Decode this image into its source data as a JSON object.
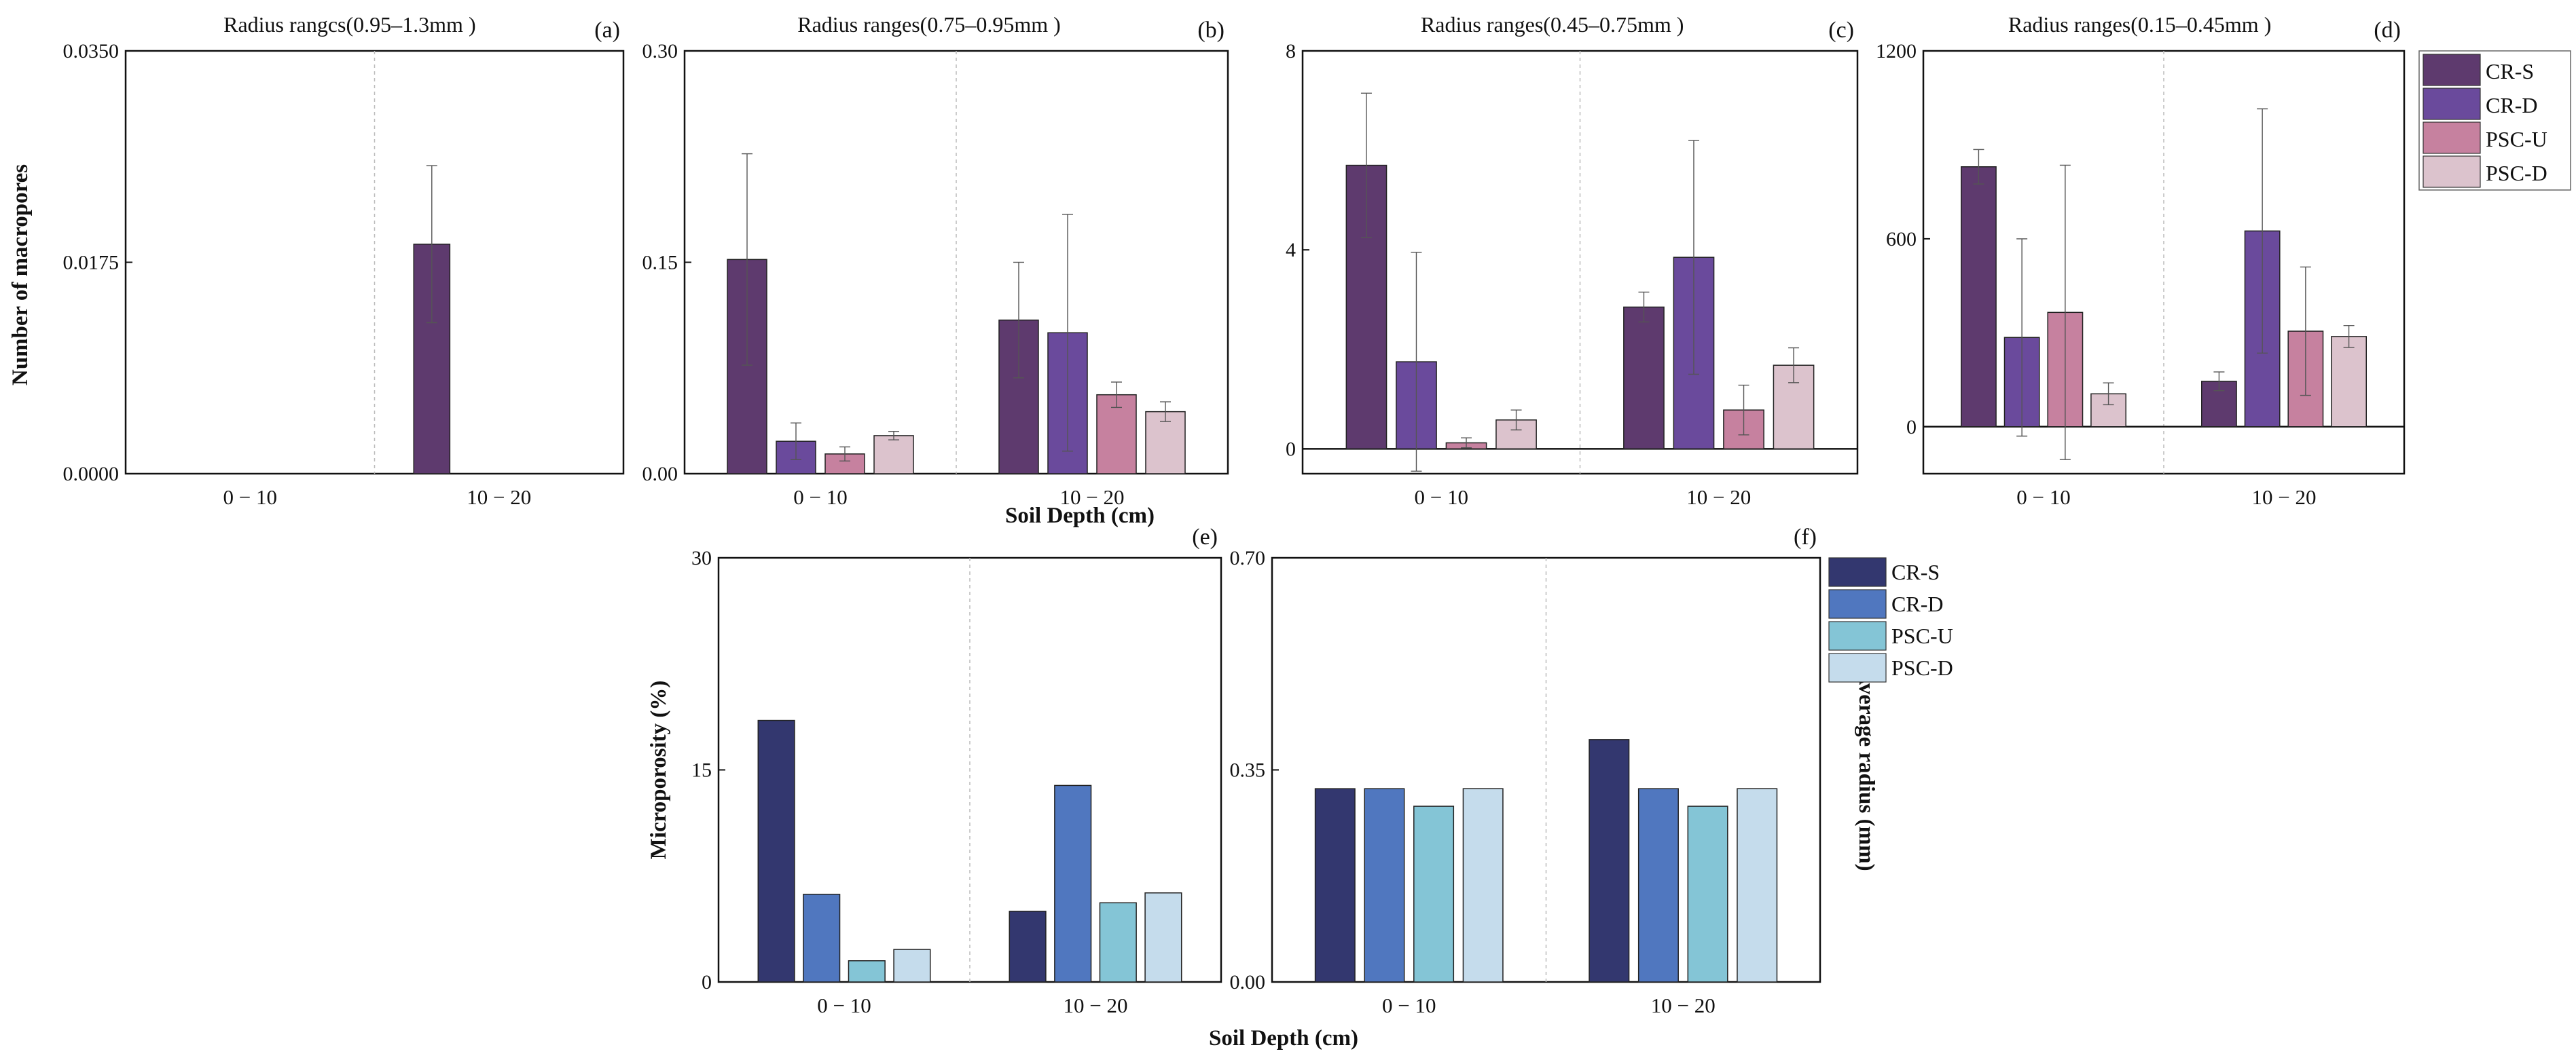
{
  "figure": {
    "top_xlabel": "Soil Depth (cm)",
    "bottom_xlabel": "Soil Depth (cm)",
    "top_ylabel": "Number of macropores",
    "legend_top": {
      "entries": [
        "CR-S",
        "CR-D",
        "PSC-U",
        "PSC-D"
      ],
      "colors": [
        "#5e3a6e",
        "#6a4a9c",
        "#c6819f",
        "#dcc3cd"
      ]
    },
    "legend_bottom": {
      "entries": [
        "CR-S",
        "CR-D",
        "PSC-U",
        "PSC-D"
      ],
      "colors": [
        "#33376f",
        "#5077bf",
        "#84c5d6",
        "#c5dcec"
      ]
    }
  },
  "chart_data": [
    {
      "panel": "(a)",
      "type": "bar",
      "title": "Radius rangcs(0.95–1.3mm )",
      "categories": [
        "0 − 10",
        "10 − 20"
      ],
      "ylim": [
        0,
        0.035
      ],
      "yticks": [
        "0.0000",
        "0.0175",
        "0.0350"
      ],
      "ylabel": "Number of macropores",
      "xlabel": "",
      "series": [
        {
          "name": "CR-S",
          "values": [
            0,
            0.019
          ],
          "errors": [
            0,
            0.0065
          ]
        },
        {
          "name": "CR-D",
          "values": [
            0,
            0
          ],
          "errors": [
            0,
            0
          ]
        },
        {
          "name": "PSC-U",
          "values": [
            0,
            0
          ],
          "errors": [
            0,
            0
          ]
        },
        {
          "name": "PSC-D",
          "values": [
            0,
            0
          ],
          "errors": [
            0,
            0
          ]
        }
      ]
    },
    {
      "panel": "(b)",
      "type": "bar",
      "title": "Radius ranges(0.75–0.95mm )",
      "categories": [
        "0 − 10",
        "10 − 20"
      ],
      "ylim": [
        0,
        0.3
      ],
      "yticks": [
        "0.00",
        "0.15",
        "0.30"
      ],
      "ylabel": "",
      "xlabel": "",
      "series": [
        {
          "name": "CR-S",
          "values": [
            0.152,
            0.109
          ],
          "errors": [
            0.075,
            0.041
          ]
        },
        {
          "name": "CR-D",
          "values": [
            0.023,
            0.1
          ],
          "errors": [
            0.013,
            0.084
          ]
        },
        {
          "name": "PSC-U",
          "values": [
            0.014,
            0.056
          ],
          "errors": [
            0.005,
            0.009
          ]
        },
        {
          "name": "PSC-D",
          "values": [
            0.027,
            0.044
          ],
          "errors": [
            0.003,
            0.007
          ]
        }
      ]
    },
    {
      "panel": "(c)",
      "type": "bar",
      "title": "Radius ranges(0.45–0.75mm )",
      "categories": [
        "0 − 10",
        "10 − 20"
      ],
      "ylim": [
        -0.5,
        8
      ],
      "yticks": [
        "0",
        "4",
        "8"
      ],
      "ylabel": "",
      "xlabel": "",
      "series": [
        {
          "name": "CR-S",
          "values": [
            5.7,
            2.85
          ],
          "errors": [
            1.45,
            0.3
          ]
        },
        {
          "name": "CR-D",
          "values": [
            1.75,
            3.85
          ],
          "errors": [
            2.2,
            2.35
          ]
        },
        {
          "name": "PSC-U",
          "values": [
            0.12,
            0.78
          ],
          "errors": [
            0.1,
            0.5
          ]
        },
        {
          "name": "PSC-D",
          "values": [
            0.58,
            1.68
          ],
          "errors": [
            0.2,
            0.35
          ]
        }
      ]
    },
    {
      "panel": "(d)",
      "type": "bar",
      "title": "Radius ranges(0.15–0.45mm )",
      "categories": [
        "0 − 10",
        "10 − 20"
      ],
      "ylim": [
        -150,
        1200
      ],
      "yticks": [
        "0",
        "600",
        "1200"
      ],
      "ylabel": "",
      "xlabel": "",
      "series": [
        {
          "name": "CR-S",
          "values": [
            830,
            145
          ],
          "errors": [
            55,
            30
          ]
        },
        {
          "name": "CR-D",
          "values": [
            285,
            625
          ],
          "errors": [
            315,
            390
          ]
        },
        {
          "name": "PSC-U",
          "values": [
            365,
            305
          ],
          "errors": [
            470,
            205
          ]
        },
        {
          "name": "PSC-D",
          "values": [
            105,
            288
          ],
          "errors": [
            35,
            35
          ]
        }
      ]
    },
    {
      "panel": "(e)",
      "type": "bar",
      "title": "",
      "categories": [
        "0 − 10",
        "10 − 20"
      ],
      "ylim": [
        0,
        30
      ],
      "yticks": [
        "0",
        "15",
        "30"
      ],
      "ylabel": "Microporosity (%)",
      "xlabel": "",
      "series": [
        {
          "name": "CR-S",
          "values": [
            18.5,
            5.0
          ]
        },
        {
          "name": "CR-D",
          "values": [
            6.2,
            13.9
          ]
        },
        {
          "name": "PSC-U",
          "values": [
            1.5,
            5.6
          ]
        },
        {
          "name": "PSC-D",
          "values": [
            2.3,
            6.3
          ]
        }
      ]
    },
    {
      "panel": "(f)",
      "type": "bar",
      "title": "",
      "categories": [
        "0 − 10",
        "10 − 20"
      ],
      "ylim": [
        0,
        0.7
      ],
      "yticks": [
        "0.00",
        "0.35",
        "0.70"
      ],
      "ylabel": "Average radius (mm)",
      "xlabel": "",
      "series": [
        {
          "name": "CR-S",
          "values": [
            0.319,
            0.4
          ]
        },
        {
          "name": "CR-D",
          "values": [
            0.319,
            0.319
          ]
        },
        {
          "name": "PSC-U",
          "values": [
            0.29,
            0.29
          ]
        },
        {
          "name": "PSC-D",
          "values": [
            0.319,
            0.319
          ]
        }
      ]
    }
  ]
}
